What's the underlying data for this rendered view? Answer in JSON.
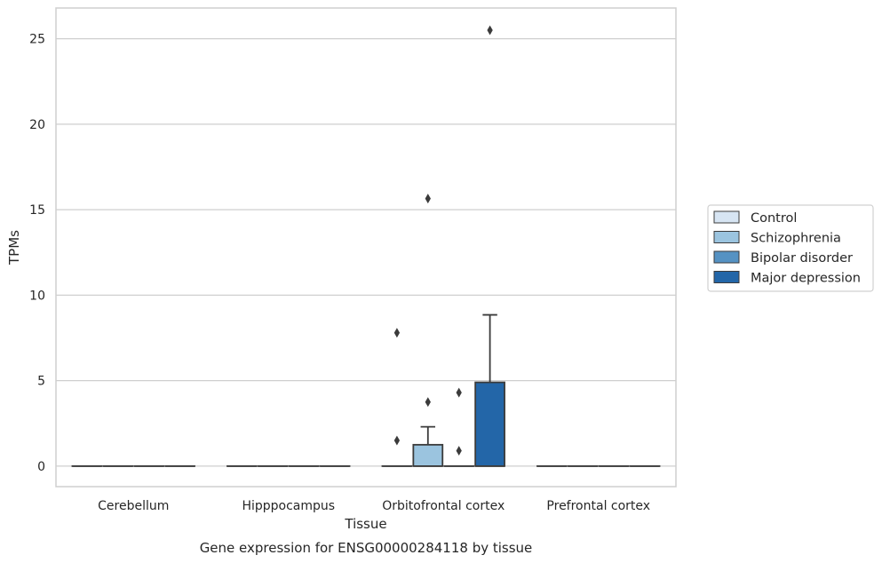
{
  "chart_data": {
    "type": "box",
    "title": "",
    "caption": "Gene expression for ENSG00000284118 by tissue",
    "xlabel": "Tissue",
    "ylabel": "TPMs",
    "ylim": [
      -1.2,
      26.8
    ],
    "yticks": [
      "0",
      "5",
      "10",
      "15",
      "20",
      "25"
    ],
    "grid": "horizontal",
    "legend_position": "right",
    "categories": [
      "Cerebellum",
      "Hipppocampus",
      "Orbitofrontal cortex",
      "Prefrontal cortex"
    ],
    "series": [
      {
        "name": "Control",
        "color": "#d7e5f3",
        "boxes": [
          {
            "q1": 0,
            "median": 0,
            "q3": 0,
            "whisker_low": 0,
            "whisker_high": 0,
            "outliers": []
          },
          {
            "q1": 0,
            "median": 0,
            "q3": 0,
            "whisker_low": 0,
            "whisker_high": 0,
            "outliers": []
          },
          {
            "q1": 0,
            "median": 0,
            "q3": 0,
            "whisker_low": 0,
            "whisker_high": 0,
            "outliers": [
              1.5,
              7.8
            ]
          },
          {
            "q1": 0,
            "median": 0,
            "q3": 0,
            "whisker_low": 0,
            "whisker_high": 0,
            "outliers": []
          }
        ]
      },
      {
        "name": "Schizophrenia",
        "color": "#9bc4df",
        "boxes": [
          {
            "q1": 0,
            "median": 0,
            "q3": 0,
            "whisker_low": 0,
            "whisker_high": 0,
            "outliers": []
          },
          {
            "q1": 0,
            "median": 0,
            "q3": 0,
            "whisker_low": 0,
            "whisker_high": 0,
            "outliers": []
          },
          {
            "q1": 0,
            "median": 0,
            "q3": 1.25,
            "whisker_low": 0,
            "whisker_high": 2.3,
            "outliers": [
              3.75,
              15.65
            ]
          },
          {
            "q1": 0,
            "median": 0,
            "q3": 0,
            "whisker_low": 0,
            "whisker_high": 0,
            "outliers": []
          }
        ]
      },
      {
        "name": "Bipolar disorder",
        "color": "#5592c3",
        "boxes": [
          {
            "q1": 0,
            "median": 0,
            "q3": 0,
            "whisker_low": 0,
            "whisker_high": 0,
            "outliers": []
          },
          {
            "q1": 0,
            "median": 0,
            "q3": 0,
            "whisker_low": 0,
            "whisker_high": 0,
            "outliers": []
          },
          {
            "q1": 0,
            "median": 0,
            "q3": 0,
            "whisker_low": 0,
            "whisker_high": 0,
            "outliers": [
              0.9,
              4.3
            ]
          },
          {
            "q1": 0,
            "median": 0,
            "q3": 0,
            "whisker_low": 0,
            "whisker_high": 0,
            "outliers": []
          }
        ]
      },
      {
        "name": "Major depression",
        "color": "#2366a8",
        "boxes": [
          {
            "q1": 0,
            "median": 0,
            "q3": 0,
            "whisker_low": 0,
            "whisker_high": 0,
            "outliers": []
          },
          {
            "q1": 0,
            "median": 0,
            "q3": 0,
            "whisker_low": 0,
            "whisker_high": 0,
            "outliers": []
          },
          {
            "q1": 0,
            "median": 0,
            "q3": 4.9,
            "whisker_low": 0,
            "whisker_high": 8.85,
            "outliers": [
              25.5
            ]
          },
          {
            "q1": 0,
            "median": 0,
            "q3": 0,
            "whisker_low": 0,
            "whisker_high": 0,
            "outliers": []
          }
        ]
      }
    ],
    "colors": {
      "grid": "#cfcfcf",
      "frame": "#cfcfcf",
      "edge": "#3b3b3b",
      "text": "#262626"
    }
  }
}
